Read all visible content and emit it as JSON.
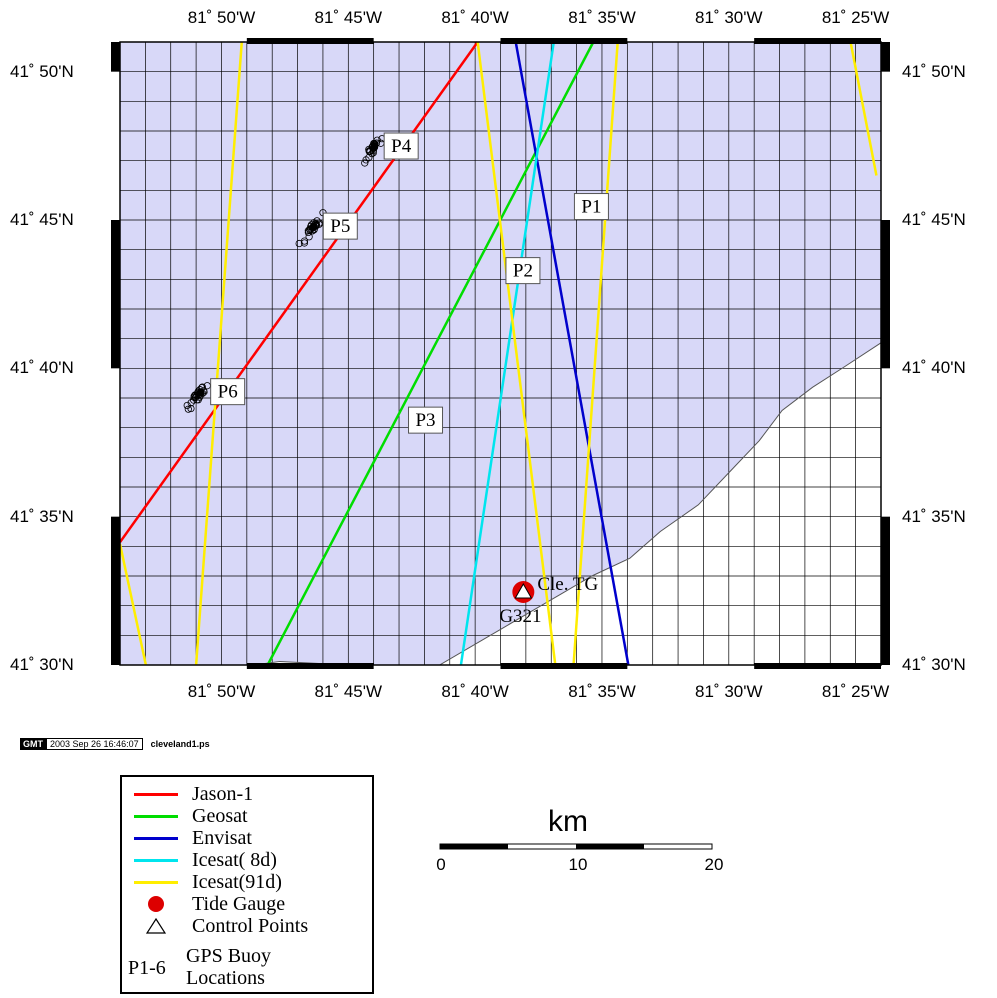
{
  "map": {
    "bounds": {
      "lon_west": -81.9,
      "lon_east": -81.4,
      "lat_south": 41.5,
      "lat_north": 41.85
    },
    "colors": {
      "water": "#d8d8f8",
      "land": "#ffffff",
      "grid": "#000000",
      "frame": "#000000"
    },
    "lon_ticks": [
      {
        "lon": -81.8333,
        "label": "81˚ 50'W"
      },
      {
        "lon": -81.75,
        "label": "81˚ 45'W"
      },
      {
        "lon": -81.6667,
        "label": "81˚ 40'W"
      },
      {
        "lon": -81.5833,
        "label": "81˚ 35'W"
      },
      {
        "lon": -81.5,
        "label": "81˚ 30'W"
      },
      {
        "lon": -81.4167,
        "label": "81˚ 25'W"
      }
    ],
    "lat_ticks": [
      {
        "lat": 41.8333,
        "label": "41˚ 50'N"
      },
      {
        "lat": 41.75,
        "label": "41˚ 45'N"
      },
      {
        "lat": 41.6667,
        "label": "41˚ 40'N"
      },
      {
        "lat": 41.5833,
        "label": "41˚ 35'N"
      },
      {
        "lat": 41.5,
        "label": "41˚ 30'N"
      }
    ],
    "tracks": [
      {
        "name": "Jason-1",
        "color": "#ff0000",
        "points": [
          [
            -81.9,
            41.569
          ],
          [
            -81.665,
            41.85
          ]
        ]
      },
      {
        "name": "Geosat",
        "color": "#00dd00",
        "points": [
          [
            -81.803,
            41.5
          ],
          [
            -81.589,
            41.85
          ]
        ]
      },
      {
        "name": "Envisat",
        "color": "#0000cc",
        "points": [
          [
            -81.64,
            41.85
          ],
          [
            -81.566,
            41.5
          ]
        ]
      },
      {
        "name": "Icesat( 8d)",
        "color": "#00e5ee",
        "points": [
          [
            -81.676,
            41.5
          ],
          [
            -81.615,
            41.85
          ]
        ]
      },
      {
        "name": "Icesat(91d)",
        "color": "#ffee00",
        "points": [
          [
            -81.82,
            41.85
          ],
          [
            -81.85,
            41.5
          ]
        ]
      },
      {
        "name": "Icesat(91d)",
        "color": "#ffee00",
        "points": [
          [
            -81.9,
            41.568
          ],
          [
            -81.883,
            41.5
          ]
        ]
      },
      {
        "name": "Icesat(91d)",
        "color": "#ffee00",
        "points": [
          [
            -81.665,
            41.85
          ],
          [
            -81.614,
            41.5
          ]
        ]
      },
      {
        "name": "Icesat(91d)",
        "color": "#ffee00",
        "points": [
          [
            -81.602,
            41.5
          ],
          [
            -81.573,
            41.85
          ]
        ]
      },
      {
        "name": "Icesat(91d)",
        "color": "#ffee00",
        "points": [
          [
            -81.42,
            41.85
          ],
          [
            -81.403,
            41.775
          ]
        ]
      }
    ],
    "shoreline": [
      [
        -81.812,
        41.5
      ],
      [
        -81.795,
        41.502
      ],
      [
        -81.75,
        41.5
      ],
      [
        -81.69,
        41.5
      ],
      [
        -81.67,
        41.51
      ],
      [
        -81.65,
        41.52
      ],
      [
        -81.63,
        41.53
      ],
      [
        -81.61,
        41.54
      ],
      [
        -81.59,
        41.55
      ],
      [
        -81.565,
        41.56
      ],
      [
        -81.545,
        41.575
      ],
      [
        -81.52,
        41.59
      ],
      [
        -81.5,
        41.608
      ],
      [
        -81.48,
        41.626
      ],
      [
        -81.465,
        41.643
      ],
      [
        -81.445,
        41.656
      ],
      [
        -81.425,
        41.667
      ],
      [
        -81.4,
        41.681
      ]
    ],
    "buoys": [
      {
        "id": "P1",
        "label": "P1",
        "lon": -81.608,
        "lat": 41.757
      },
      {
        "id": "P2",
        "label": "P2",
        "lon": -81.653,
        "lat": 41.721
      },
      {
        "id": "P3",
        "label": "P3",
        "lon": -81.717,
        "lat": 41.637
      },
      {
        "id": "P4",
        "label": "P4",
        "lon": -81.733,
        "lat": 41.791
      },
      {
        "id": "P5",
        "label": "P5",
        "lon": -81.773,
        "lat": 41.746
      },
      {
        "id": "P6",
        "label": "P6",
        "lon": -81.847,
        "lat": 41.653
      }
    ],
    "tide_gauge": {
      "label": "Cle. TG",
      "lon": -81.635,
      "lat": 41.541,
      "color": "#dd0000"
    },
    "control_point": {
      "label": "G321"
    }
  },
  "stamp": {
    "logo": "GMT",
    "date": "2003 Sep 26 16:46:07",
    "file": "cleveland1.ps"
  },
  "legend": {
    "items": [
      {
        "label": "Jason-1",
        "color": "#ff0000"
      },
      {
        "label": "Geosat",
        "color": "#00dd00"
      },
      {
        "label": "Envisat",
        "color": "#0000cc"
      },
      {
        "label": "Icesat( 8d)",
        "color": "#00e5ee"
      },
      {
        "label": "Icesat(91d)",
        "color": "#ffee00"
      }
    ],
    "tide_gauge_label": "Tide Gauge",
    "control_points_label": "Control Points",
    "buoy_key": "P1-6",
    "buoy_desc_line1": "GPS Buoy",
    "buoy_desc_line2": "Locations"
  },
  "scale_bar": {
    "title": "km",
    "ticks": [
      "0",
      "10",
      "20"
    ]
  }
}
